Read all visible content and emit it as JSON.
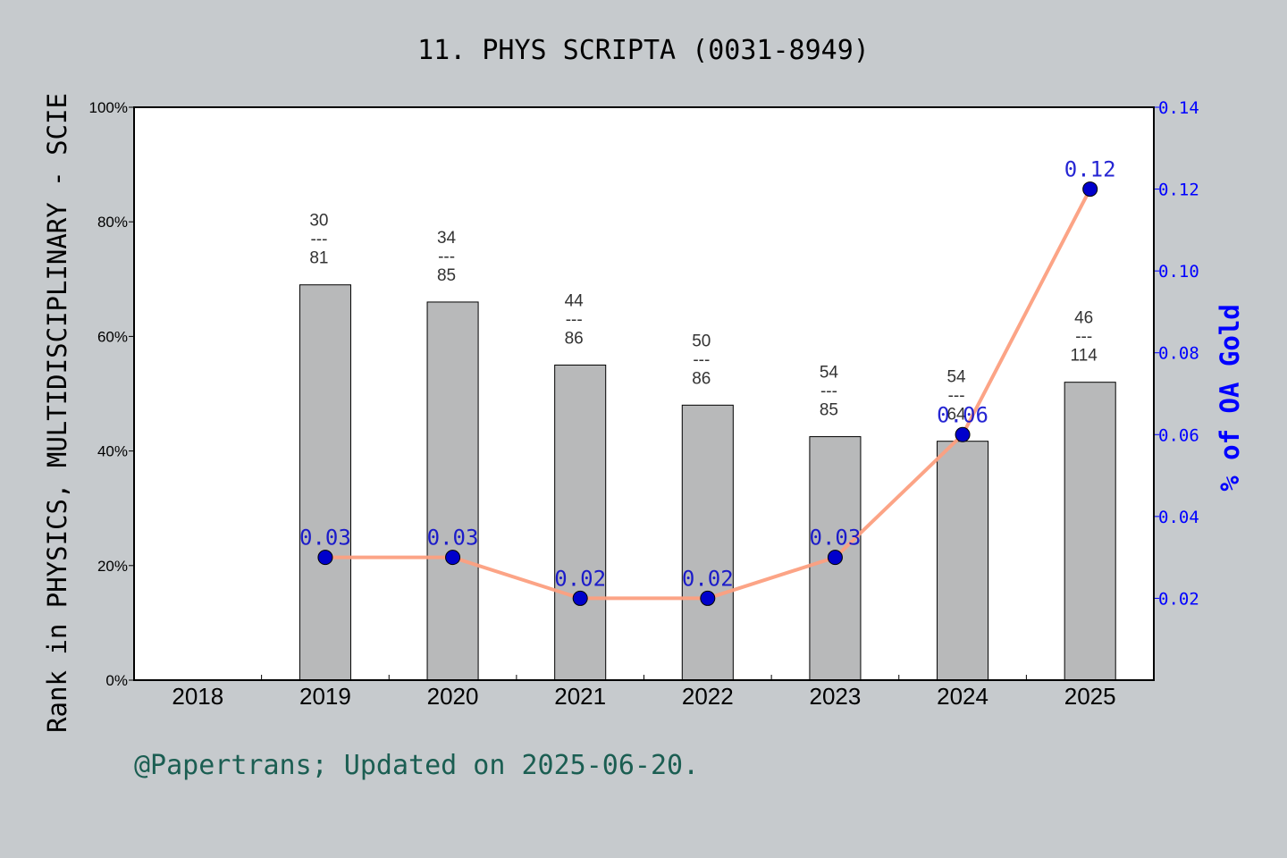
{
  "chart_data": {
    "type": "bar",
    "title": "11. PHYS SCRIPTA (0031-8949)",
    "ylabel": "Rank in PHYSICS, MULTIDISCIPLINARY - SCIE",
    "y2label": "% of OA Gold",
    "footer": "@Papertrans; Updated on 2025-06-20.",
    "categories": [
      "2018",
      "2019",
      "2020",
      "2021",
      "2022",
      "2023",
      "2024",
      "2025"
    ],
    "ylim": [
      0,
      100
    ],
    "y_ticks": [
      "0%",
      "20%",
      "40%",
      "60%",
      "80%",
      "100%"
    ],
    "y2lim": [
      0,
      0.14
    ],
    "y2_ticks": [
      "0.02",
      "0.04",
      "0.06",
      "0.08",
      "0.10",
      "0.12",
      "0.14"
    ],
    "series": [
      {
        "kind": "bar",
        "values": [
          null,
          69,
          66,
          55,
          48,
          42.5,
          41.7,
          52
        ],
        "labels": [
          null,
          [
            "30",
            "---",
            "81"
          ],
          [
            "34",
            "---",
            "85"
          ],
          [
            "44",
            "---",
            "86"
          ],
          [
            "50",
            "---",
            "86"
          ],
          [
            "54",
            "---",
            "85"
          ],
          [
            "54",
            "---",
            "64"
          ],
          [
            "46",
            "---",
            "114"
          ]
        ],
        "color": "#b8b9ba"
      },
      {
        "kind": "line",
        "axis": "right",
        "values": [
          null,
          0.03,
          0.03,
          0.02,
          0.02,
          0.03,
          0.06,
          0.12
        ],
        "labels": [
          null,
          "0.03",
          "0.03",
          "0.02",
          "0.02",
          "0.03",
          "0.06",
          "0.12"
        ],
        "color": "#fc9f7f",
        "marker_color": "#0000cc"
      }
    ],
    "grid": false,
    "colors": {
      "background": "#c6cacd",
      "plot_bg": "#ffffff",
      "right_axis": "#0000ff",
      "footer": "#1b5e52"
    }
  }
}
